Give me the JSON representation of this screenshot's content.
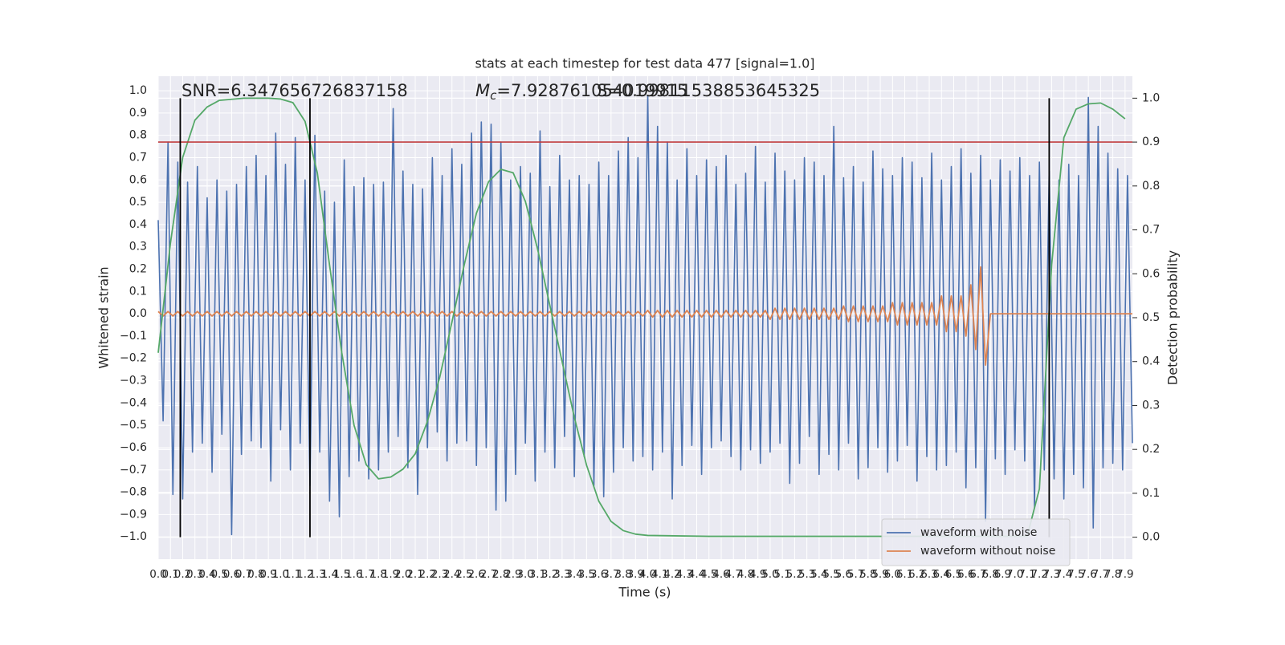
{
  "chart_data": {
    "type": "line",
    "title": "stats at each timestep for test data 477 [signal=1.0]",
    "xlabel": "Time (s)",
    "ylabel": "Whitened strain",
    "y2label": "Detection probability",
    "annotations": [
      {
        "text": "SNR=6.347656726837158"
      },
      {
        "symbol": "M",
        "subscript": "c",
        "text": "=7.928761054019915"
      },
      {
        "text": "S=0.99811538853645325"
      }
    ],
    "xlim": [
      0,
      7.96
    ],
    "ylim": [
      -1.1,
      1.065
    ],
    "y2lim": [
      -0.05,
      1.05
    ],
    "grid": true,
    "legend": "lower right",
    "xticks": [
      {
        "value": 0,
        "label": "0.0"
      },
      0.1,
      0.2,
      0.3,
      0.4,
      0.5,
      0.6,
      0.7,
      0.8,
      0.9,
      {
        "value": 1,
        "label": "1.0"
      },
      1.1,
      1.2,
      1.3,
      1.4,
      1.5,
      1.6,
      1.7,
      1.8,
      1.9,
      {
        "value": 2,
        "label": "2.0"
      },
      2.1,
      2.2,
      2.3,
      2.4,
      2.5,
      2.6,
      2.7,
      2.8,
      2.9,
      {
        "value": 3,
        "label": "3.0"
      },
      3.1,
      3.2,
      3.3,
      3.4,
      3.5,
      3.6,
      3.7,
      3.8,
      3.9,
      {
        "value": 4,
        "label": "4.0"
      },
      4.1,
      4.2,
      4.3,
      4.4,
      4.5,
      4.6,
      4.7,
      4.8,
      4.9,
      {
        "value": 5,
        "label": "5.0"
      },
      5.1,
      5.2,
      5.3,
      5.4,
      5.5,
      5.6,
      5.7,
      5.8,
      5.9,
      {
        "value": 6,
        "label": "6.0"
      },
      6.1,
      6.2,
      6.3,
      6.4,
      6.5,
      6.6,
      6.7,
      6.8,
      6.9,
      {
        "value": 7,
        "label": "7.0"
      },
      7.1,
      7.2,
      7.3,
      7.4,
      7.5,
      7.6,
      7.7,
      7.8,
      7.9
    ],
    "yticks": [
      {
        "value": 1,
        "label": "1.0"
      },
      0.9,
      0.8,
      0.7,
      0.6,
      0.5,
      0.4,
      0.3,
      0.2,
      0.1,
      {
        "value": 0,
        "label": "0.0"
      },
      {
        "value": -0.1,
        "label": "−0.1"
      },
      {
        "value": -0.2,
        "label": "−0.2"
      },
      {
        "value": -0.3,
        "label": "−0.3"
      },
      {
        "value": -0.4,
        "label": "−0.4"
      },
      {
        "value": -0.5,
        "label": "−0.5"
      },
      {
        "value": -0.6,
        "label": "−0.6"
      },
      {
        "value": -0.7,
        "label": "−0.7"
      },
      {
        "value": -0.8,
        "label": "−0.8"
      },
      {
        "value": -0.9,
        "label": "−0.9"
      },
      {
        "value": -1,
        "label": "−1.0"
      }
    ],
    "y2ticks": [
      {
        "value": 0,
        "label": "0.0"
      },
      0.1,
      0.2,
      0.3,
      0.4,
      0.5,
      0.6,
      0.7,
      0.8,
      0.9,
      {
        "value": 1,
        "label": "1.0"
      }
    ],
    "vlines": [
      0.18,
      1.24,
      7.28
    ],
    "vline_ylim": [
      0,
      1
    ],
    "vline_color": "#000000",
    "vline_axis": "y2",
    "hline": 0.9,
    "hline_color": "#c03d3e",
    "hline_axis": "y2",
    "x": [
      0,
      0.04,
      0.08,
      0.12,
      0.16,
      0.2,
      0.24,
      0.28,
      0.32,
      0.36,
      0.4,
      0.44,
      0.48,
      0.52,
      0.56,
      0.6,
      0.64,
      0.68,
      0.72,
      0.76,
      0.8,
      0.84,
      0.88,
      0.92,
      0.96,
      1,
      1.04,
      1.08,
      1.12,
      1.16,
      1.2,
      1.24,
      1.28,
      1.32,
      1.36,
      1.4,
      1.44,
      1.48,
      1.52,
      1.56,
      1.6,
      1.64,
      1.68,
      1.72,
      1.76,
      1.8,
      1.84,
      1.88,
      1.92,
      1.96,
      2,
      2.04,
      2.08,
      2.12,
      2.16,
      2.2,
      2.24,
      2.28,
      2.32,
      2.36,
      2.4,
      2.44,
      2.48,
      2.52,
      2.56,
      2.6,
      2.64,
      2.68,
      2.72,
      2.76,
      2.8,
      2.84,
      2.88,
      2.92,
      2.96,
      3,
      3.04,
      3.08,
      3.12,
      3.16,
      3.2,
      3.24,
      3.28,
      3.32,
      3.36,
      3.4,
      3.44,
      3.48,
      3.52,
      3.56,
      3.6,
      3.64,
      3.68,
      3.72,
      3.76,
      3.8,
      3.84,
      3.88,
      3.92,
      3.96,
      4,
      4.04,
      4.08,
      4.12,
      4.16,
      4.2,
      4.24,
      4.28,
      4.32,
      4.36,
      4.4,
      4.44,
      4.48,
      4.52,
      4.56,
      4.6,
      4.64,
      4.68,
      4.72,
      4.76,
      4.8,
      4.84,
      4.88,
      4.92,
      4.96,
      5,
      5.04,
      5.08,
      5.12,
      5.16,
      5.2,
      5.24,
      5.28,
      5.32,
      5.36,
      5.4,
      5.44,
      5.48,
      5.52,
      5.56,
      5.6,
      5.64,
      5.68,
      5.72,
      5.76,
      5.8,
      5.84,
      5.88,
      5.92,
      5.96,
      6,
      6.04,
      6.08,
      6.12,
      6.16,
      6.2,
      6.24,
      6.28,
      6.32,
      6.36,
      6.4,
      6.44,
      6.48,
      6.52,
      6.56,
      6.6,
      6.64,
      6.68,
      6.72,
      6.76,
      6.8,
      6.84,
      6.88,
      6.92,
      6.96,
      7,
      7.04,
      7.08,
      7.12,
      7.16,
      7.2,
      7.24,
      7.28,
      7.32,
      7.36,
      7.4,
      7.44,
      7.48,
      7.52,
      7.56,
      7.6,
      7.64,
      7.68,
      7.72,
      7.76,
      7.8,
      7.84,
      7.88,
      7.92,
      7.96
    ],
    "series": [
      {
        "name": "waveform with noise",
        "color": "#4c72b0",
        "values": [
          0.42,
          -0.48,
          0.77,
          -0.81,
          0.68,
          -0.83,
          0.59,
          -0.62,
          0.66,
          -0.58,
          0.52,
          -0.71,
          0.6,
          -0.54,
          0.55,
          -0.99,
          0.58,
          -0.63,
          0.66,
          -0.57,
          0.71,
          -0.6,
          0.62,
          -0.75,
          0.81,
          -0.52,
          0.67,
          -0.7,
          0.79,
          -0.58,
          0.6,
          -0.77,
          0.8,
          -0.62,
          0.55,
          -0.84,
          0.5,
          -0.91,
          0.69,
          -0.73,
          0.57,
          -0.66,
          0.61,
          -0.74,
          0.58,
          -0.7,
          0.59,
          -0.62,
          0.92,
          -0.55,
          0.64,
          -0.69,
          0.58,
          -0.81,
          0.56,
          -0.6,
          0.7,
          -0.53,
          0.62,
          -0.66,
          0.74,
          -0.58,
          0.67,
          -0.57,
          0.81,
          -0.68,
          0.86,
          -0.6,
          0.85,
          -0.88,
          0.77,
          -0.84,
          0.6,
          -0.72,
          0.66,
          -0.58,
          0.63,
          -0.75,
          0.82,
          -0.62,
          0.57,
          -0.69,
          0.71,
          -0.55,
          0.6,
          -0.73,
          0.62,
          -0.64,
          0.58,
          -0.77,
          0.68,
          -0.82,
          0.62,
          -0.71,
          0.73,
          -0.6,
          0.79,
          -0.66,
          0.7,
          -0.64,
          0.98,
          -0.7,
          0.84,
          -0.62,
          0.77,
          -0.83,
          0.6,
          -0.68,
          0.74,
          -0.59,
          0.62,
          -0.72,
          0.69,
          -0.6,
          0.66,
          -0.57,
          0.71,
          -0.64,
          0.58,
          -0.7,
          0.63,
          -0.61,
          0.75,
          -0.67,
          0.59,
          -0.62,
          0.72,
          -0.58,
          0.64,
          -0.76,
          0.6,
          -0.67,
          0.7,
          -0.55,
          0.68,
          -0.72,
          0.62,
          -0.63,
          0.84,
          -0.7,
          0.61,
          -0.58,
          0.66,
          -0.74,
          0.59,
          -0.69,
          0.73,
          -0.6,
          0.65,
          -0.71,
          0.62,
          -0.66,
          0.7,
          -0.59,
          0.68,
          -0.75,
          0.61,
          -0.64,
          0.72,
          -0.7,
          0.6,
          -0.68,
          0.66,
          -0.62,
          0.74,
          -0.78,
          0.63,
          -0.69,
          0.71,
          -0.93,
          0.6,
          -0.65,
          0.69,
          -0.72,
          0.64,
          -0.61,
          0.7,
          -0.66,
          0.62,
          -0.87,
          0.68,
          -0.7,
          0.64,
          -0.74,
          0.6,
          -0.83,
          0.67,
          -0.72,
          0.62,
          -0.78,
          0.97,
          -0.96,
          0.84,
          -0.69,
          0.72,
          -0.67,
          0.65,
          -0.7,
          0.62,
          -0.58
        ]
      },
      {
        "name": "waveform without noise",
        "color": "#dd8452",
        "values": [
          0.01,
          -0.01,
          0.01,
          -0.01,
          0.01,
          -0.01,
          0.01,
          -0.01,
          0.01,
          -0.01,
          0.01,
          -0.01,
          0.01,
          -0.01,
          0.01,
          -0.01,
          0.01,
          -0.01,
          0.01,
          -0.01,
          0.01,
          -0.01,
          0.01,
          -0.01,
          0.01,
          -0.01,
          0.01,
          -0.01,
          0.01,
          -0.01,
          0.01,
          -0.01,
          0.01,
          -0.01,
          0.01,
          -0.01,
          0.01,
          -0.01,
          0.01,
          -0.01,
          0.01,
          -0.01,
          0.01,
          -0.01,
          0.01,
          -0.01,
          0.01,
          -0.01,
          0.01,
          -0.01,
          0.01,
          -0.01,
          0.01,
          -0.01,
          0.01,
          -0.01,
          0.01,
          -0.01,
          0.01,
          -0.01,
          0.01,
          -0.01,
          0.01,
          -0.01,
          0.01,
          -0.01,
          0.01,
          -0.01,
          0.01,
          -0.01,
          0.01,
          -0.01,
          0.01,
          -0.01,
          0.01,
          -0.01,
          0.01,
          -0.01,
          0.01,
          -0.01,
          0.01,
          -0.01,
          0.01,
          -0.01,
          0.01,
          -0.01,
          0.01,
          -0.01,
          0.01,
          -0.01,
          0.01,
          -0.01,
          0.01,
          -0.01,
          0.01,
          -0.01,
          0.01,
          -0.01,
          0.01,
          -0.01,
          0.015,
          -0.015,
          0.015,
          -0.015,
          0.015,
          -0.015,
          0.015,
          -0.015,
          0.015,
          -0.015,
          0.015,
          -0.015,
          0.015,
          -0.015,
          0.015,
          -0.015,
          0.015,
          -0.015,
          0.015,
          -0.015,
          0.015,
          -0.015,
          0.015,
          -0.015,
          0.015,
          -0.025,
          0.025,
          -0.025,
          0.025,
          -0.025,
          0.025,
          -0.025,
          0.025,
          -0.025,
          0.025,
          -0.025,
          0.025,
          -0.025,
          0.025,
          -0.025,
          0.035,
          -0.035,
          0.035,
          -0.035,
          0.035,
          -0.035,
          0.035,
          -0.035,
          0.035,
          -0.035,
          0.05,
          -0.05,
          0.05,
          -0.05,
          0.05,
          -0.05,
          0.05,
          -0.05,
          0.05,
          -0.05,
          0.08,
          -0.08,
          0.08,
          -0.08,
          0.08,
          -0.1,
          0.13,
          -0.16,
          0.21,
          -0.23,
          0,
          0,
          0,
          0,
          0,
          0,
          0,
          0,
          0,
          0,
          0,
          0,
          0,
          0,
          0,
          0,
          0,
          0,
          0,
          0,
          0,
          0,
          0,
          0,
          0,
          0,
          0,
          0,
          0,
          0
        ]
      },
      {
        "color": "#55a868",
        "axis": "y2",
        "x": [
          0,
          0.1,
          0.2,
          0.3,
          0.4,
          0.5,
          0.7,
          0.9,
          1.0,
          1.1,
          1.2,
          1.3,
          1.4,
          1.5,
          1.6,
          1.7,
          1.8,
          1.9,
          2.0,
          2.1,
          2.2,
          2.3,
          2.4,
          2.5,
          2.6,
          2.7,
          2.8,
          2.9,
          3.0,
          3.1,
          3.2,
          3.3,
          3.4,
          3.5,
          3.6,
          3.7,
          3.8,
          3.9,
          4.0,
          4.5,
          5.0,
          6.0,
          7.0,
          7.1,
          7.2,
          7.3,
          7.4,
          7.5,
          7.6,
          7.7,
          7.8,
          7.9
        ],
        "values": [
          0.42,
          0.67,
          0.865,
          0.95,
          0.98,
          0.995,
          1.0,
          1.0,
          0.998,
          0.99,
          0.947,
          0.83,
          0.62,
          0.42,
          0.255,
          0.165,
          0.133,
          0.137,
          0.155,
          0.19,
          0.264,
          0.364,
          0.49,
          0.62,
          0.738,
          0.81,
          0.838,
          0.83,
          0.765,
          0.656,
          0.528,
          0.4,
          0.273,
          0.164,
          0.082,
          0.036,
          0.015,
          0.007,
          0.004,
          0.002,
          0.002,
          0.002,
          0.002,
          0.002,
          0.11,
          0.62,
          0.91,
          0.975,
          0.987,
          0.989,
          0.975,
          0.953
        ]
      }
    ]
  }
}
